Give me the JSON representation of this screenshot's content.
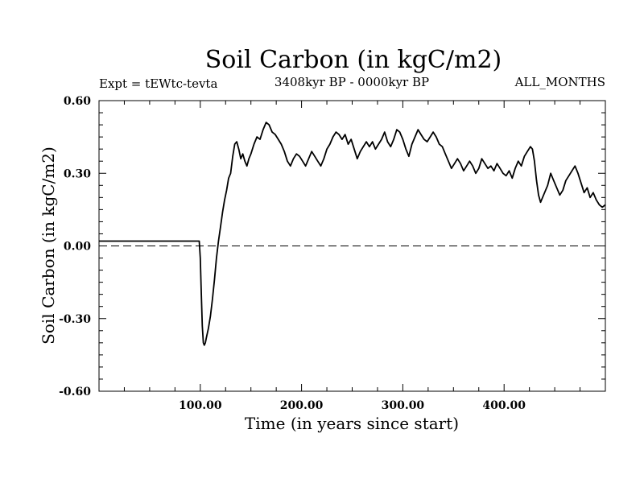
{
  "colors": {
    "background": "#ffffff",
    "ink": "#000000"
  },
  "chart_data": {
    "type": "line",
    "title": "Soil Carbon (in kgC/m2)",
    "subtitle_left": "Expt = tEWtc-tevta",
    "subtitle_center": "3408kyr BP - 0000kyr BP",
    "subtitle_right": "ALL_MONTHS",
    "xlabel": "Time (in years since start)",
    "ylabel": "Soil Carbon (in kgC/m2)",
    "xlim": [
      0,
      500
    ],
    "ylim": [
      -0.6,
      0.6
    ],
    "x_ticks": [
      100,
      200,
      300,
      400
    ],
    "x_tick_labels": [
      "100.00",
      "200.00",
      "300.00",
      "400.00"
    ],
    "y_ticks": [
      0.6,
      0.3,
      0.0,
      -0.3,
      -0.6
    ],
    "y_tick_labels": [
      "0.60",
      "0.30",
      "0.00",
      "-0.30",
      "-0.60"
    ],
    "reference_line": {
      "y": 0.0,
      "style": "dashed"
    },
    "series": [
      {
        "name": "Soil Carbon",
        "x": [
          0,
          99,
          100,
          101,
          102,
          103,
          104,
          105,
          106,
          108,
          110,
          112,
          114,
          116,
          118,
          120,
          122,
          124,
          126,
          128,
          130,
          132,
          134,
          136,
          138,
          140,
          142,
          144,
          146,
          148,
          150,
          153,
          156,
          159,
          162,
          165,
          168,
          171,
          174,
          177,
          180,
          183,
          186,
          189,
          192,
          195,
          198,
          201,
          204,
          207,
          210,
          213,
          216,
          219,
          222,
          225,
          228,
          231,
          234,
          237,
          240,
          243,
          246,
          249,
          252,
          255,
          258,
          261,
          264,
          267,
          270,
          273,
          276,
          279,
          282,
          285,
          288,
          291,
          294,
          297,
          300,
          303,
          306,
          309,
          312,
          315,
          318,
          321,
          324,
          327,
          330,
          333,
          336,
          339,
          342,
          345,
          348,
          351,
          354,
          357,
          360,
          363,
          366,
          369,
          372,
          375,
          378,
          381,
          384,
          387,
          390,
          393,
          396,
          399,
          402,
          405,
          408,
          411,
          414,
          417,
          420,
          423,
          426,
          428,
          430,
          432,
          434,
          436,
          438,
          440,
          443,
          446,
          449,
          452,
          455,
          458,
          461,
          464,
          467,
          470,
          473,
          476,
          479,
          482,
          485,
          488,
          491,
          494,
          497,
          500
        ],
        "y": [
          0.02,
          0.02,
          -0.05,
          -0.2,
          -0.33,
          -0.4,
          -0.41,
          -0.4,
          -0.38,
          -0.34,
          -0.29,
          -0.22,
          -0.14,
          -0.05,
          0.02,
          0.08,
          0.14,
          0.19,
          0.23,
          0.28,
          0.3,
          0.37,
          0.42,
          0.43,
          0.4,
          0.36,
          0.38,
          0.35,
          0.33,
          0.36,
          0.38,
          0.42,
          0.45,
          0.44,
          0.48,
          0.51,
          0.5,
          0.47,
          0.46,
          0.44,
          0.42,
          0.39,
          0.35,
          0.33,
          0.36,
          0.38,
          0.37,
          0.35,
          0.33,
          0.36,
          0.39,
          0.37,
          0.35,
          0.33,
          0.36,
          0.4,
          0.42,
          0.45,
          0.47,
          0.46,
          0.44,
          0.46,
          0.42,
          0.44,
          0.4,
          0.36,
          0.39,
          0.41,
          0.43,
          0.41,
          0.43,
          0.4,
          0.42,
          0.44,
          0.47,
          0.43,
          0.41,
          0.44,
          0.48,
          0.47,
          0.44,
          0.4,
          0.37,
          0.42,
          0.45,
          0.48,
          0.46,
          0.44,
          0.43,
          0.45,
          0.47,
          0.45,
          0.42,
          0.41,
          0.38,
          0.35,
          0.32,
          0.34,
          0.36,
          0.34,
          0.31,
          0.33,
          0.35,
          0.33,
          0.3,
          0.32,
          0.36,
          0.34,
          0.32,
          0.33,
          0.31,
          0.34,
          0.32,
          0.3,
          0.29,
          0.31,
          0.28,
          0.32,
          0.35,
          0.33,
          0.37,
          0.39,
          0.41,
          0.4,
          0.35,
          0.27,
          0.21,
          0.18,
          0.2,
          0.22,
          0.25,
          0.3,
          0.27,
          0.24,
          0.21,
          0.23,
          0.27,
          0.29,
          0.31,
          0.33,
          0.3,
          0.26,
          0.22,
          0.24,
          0.2,
          0.22,
          0.19,
          0.17,
          0.16,
          0.17
        ]
      }
    ]
  }
}
